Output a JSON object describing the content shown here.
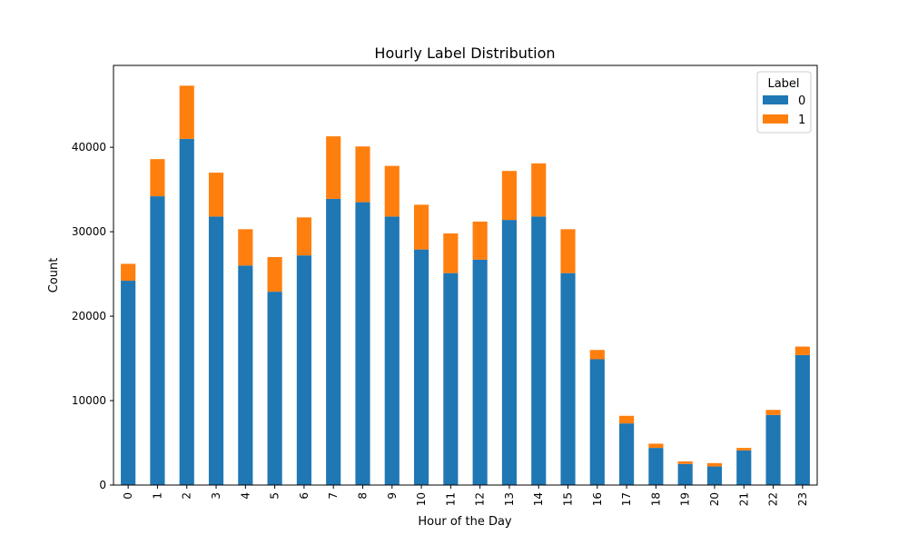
{
  "chart_data": {
    "type": "bar",
    "stacked": true,
    "title": "Hourly Label Distribution",
    "xlabel": "Hour of the Day",
    "ylabel": "Count",
    "categories": [
      "0",
      "1",
      "2",
      "3",
      "4",
      "5",
      "6",
      "7",
      "8",
      "9",
      "10",
      "11",
      "12",
      "13",
      "14",
      "15",
      "16",
      "17",
      "18",
      "19",
      "20",
      "21",
      "22",
      "23"
    ],
    "series": [
      {
        "name": "0",
        "color": "#1f77b4",
        "values": [
          24200,
          34200,
          41000,
          31800,
          26000,
          22900,
          27200,
          33900,
          33500,
          31800,
          27900,
          25100,
          26700,
          31400,
          31800,
          25100,
          14900,
          7300,
          4400,
          2500,
          2200,
          4100,
          8300,
          15400
        ]
      },
      {
        "name": "1",
        "color": "#ff7f0e",
        "values": [
          2000,
          4400,
          6300,
          5200,
          4300,
          4100,
          4500,
          7400,
          6600,
          6000,
          5300,
          4700,
          4500,
          5800,
          6300,
          5200,
          1100,
          900,
          500,
          300,
          400,
          300,
          600,
          1000
        ]
      }
    ],
    "ylim": [
      0,
      49700
    ],
    "yticks": [
      0,
      10000,
      20000,
      30000,
      40000
    ],
    "legend": {
      "title": "Label",
      "position": "top-right"
    },
    "grid": false
  }
}
